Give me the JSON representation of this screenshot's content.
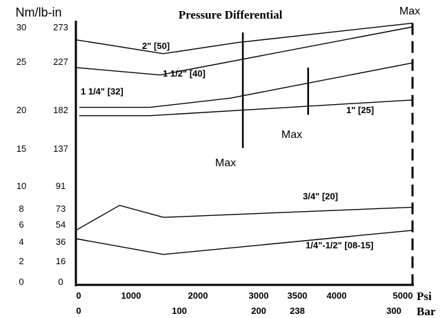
{
  "chart_data": {
    "type": "line",
    "title": "Pressure Differential",
    "y_axis_units": [
      "Nm/lb-in"
    ],
    "y_ticks": [
      {
        "nm": "30",
        "lbin": "273",
        "value": 273
      },
      {
        "nm": "25",
        "lbin": "227",
        "value": 227
      },
      {
        "nm": "20",
        "lbin": "182",
        "value": 182
      },
      {
        "nm": "15",
        "lbin": "137",
        "value": 137
      },
      {
        "nm": "10",
        "lbin": "91",
        "value": 91
      },
      {
        "nm": "8",
        "lbin": "73",
        "value": 73
      },
      {
        "nm": "6",
        "lbin": "54",
        "value": 54
      },
      {
        "nm": "4",
        "lbin": "36",
        "value": 36
      },
      {
        "nm": "2",
        "lbin": "16",
        "value": 16
      },
      {
        "nm": "0",
        "lbin": "0",
        "value": 0
      }
    ],
    "x_ticks_psi": [
      {
        "label": "0",
        "value": 0
      },
      {
        "label": "1000",
        "value": 1000
      },
      {
        "label": "2000",
        "value": 2000
      },
      {
        "label": "3000",
        "value": 3000
      },
      {
        "label": "3500",
        "value": 3500
      },
      {
        "label": "4000",
        "value": 4000
      },
      {
        "label": "5000",
        "value": 5000
      }
    ],
    "x_unit_psi": "Psi",
    "x_ticks_bar": [
      {
        "label": "0",
        "value": 0
      },
      {
        "label": "100",
        "value": 1450
      },
      {
        "label": "200",
        "value": 2900
      },
      {
        "label": "238",
        "value": 3450
      },
      {
        "label": "300",
        "value": 4350
      }
    ],
    "x_unit_bar": "Bar",
    "xlim": [
      0,
      5000
    ],
    "ylim": [
      0,
      273
    ],
    "series": [
      {
        "name": "2\" [50]",
        "points": [
          [
            0,
            265
          ],
          [
            1300,
            250
          ],
          [
            2400,
            262
          ],
          [
            5000,
            283
          ]
        ]
      },
      {
        "name": "1 1/2\" [40]",
        "points": [
          [
            0,
            235
          ],
          [
            1250,
            227
          ],
          [
            5000,
            279
          ]
        ]
      },
      {
        "name": "1 1/4\" [32]",
        "points": [
          [
            50,
            192
          ],
          [
            1100,
            192
          ],
          [
            2300,
            202
          ],
          [
            5000,
            240
          ]
        ]
      },
      {
        "name": "1\" [25]",
        "points": [
          [
            50,
            183
          ],
          [
            1100,
            183
          ],
          [
            5000,
            200
          ]
        ]
      },
      {
        "name": "3/4\" [20]",
        "points": [
          [
            0,
            59
          ],
          [
            650,
            86
          ],
          [
            1300,
            73
          ],
          [
            5000,
            84
          ]
        ]
      },
      {
        "name": "1/4\"-1/2\" [08-15]",
        "points": [
          [
            0,
            50
          ],
          [
            1300,
            33
          ],
          [
            5000,
            59
          ]
        ]
      }
    ],
    "max_markers": [
      {
        "label": "Max",
        "x": 2480,
        "y_top": 273,
        "y_bottom": 148
      },
      {
        "label": "Max",
        "x": 3450,
        "y_top": 235,
        "y_bottom": 184
      },
      {
        "label": "Max",
        "x": 5000,
        "y_top": 283,
        "y_bottom": 0,
        "dashed": true
      }
    ]
  }
}
